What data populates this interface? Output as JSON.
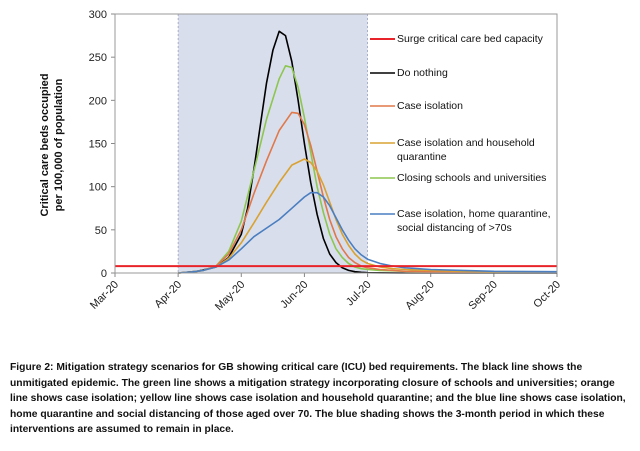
{
  "chart_data": {
    "type": "line",
    "title": "",
    "ylabel_line1": "Critical care beds occupied",
    "ylabel_line2": "per 100,000 of population",
    "xlabel": "",
    "x_ticks": [
      "Mar-20",
      "Apr-20",
      "May-20",
      "Jun-20",
      "Jul-20",
      "Aug-20",
      "Sep-20",
      "Oct-20"
    ],
    "ylim": [
      0,
      300
    ],
    "y_ticks": [
      0,
      50,
      100,
      150,
      200,
      250,
      300
    ],
    "shaded_period": {
      "start": "Apr-20",
      "end": "Jul-20",
      "color": "#d9deec"
    },
    "legend_position": "right, inside plot",
    "capacity": {
      "name": "Surge critical care bed capacity",
      "value": 8,
      "color": "#e8242a"
    },
    "series": [
      {
        "name": "Do nothing",
        "color": "#000000",
        "x": [
          1.0,
          1.3,
          1.6,
          1.8,
          2.0,
          2.1,
          2.2,
          2.3,
          2.4,
          2.5,
          2.6,
          2.7,
          2.8,
          2.9,
          3.0,
          3.1,
          3.2,
          3.3,
          3.4,
          3.5,
          3.6,
          3.7,
          3.8,
          3.9,
          4.0,
          4.2,
          4.5,
          5.0,
          6.0,
          7.0
        ],
        "y": [
          0,
          2,
          7,
          18,
          45,
          75,
          120,
          170,
          220,
          258,
          280,
          275,
          245,
          200,
          150,
          105,
          68,
          40,
          22,
          12,
          6,
          3,
          1.5,
          0.8,
          0.4,
          0.2,
          0.1,
          0,
          0,
          0
        ]
      },
      {
        "name": "Closing schools and universities",
        "color": "#8dc64f",
        "x": [
          1.0,
          1.2,
          1.4,
          1.6,
          1.8,
          2.0,
          2.2,
          2.4,
          2.6,
          2.7,
          2.8,
          2.9,
          3.0,
          3.1,
          3.2,
          3.3,
          3.4,
          3.5,
          3.6,
          3.7,
          3.8,
          3.9,
          4.0,
          4.2,
          4.4,
          4.6,
          5.0,
          5.5,
          6.0,
          7.0
        ],
        "y": [
          0,
          1,
          3,
          8,
          25,
          60,
          118,
          178,
          225,
          240,
          238,
          215,
          180,
          140,
          100,
          70,
          45,
          28,
          18,
          11,
          7,
          5,
          4,
          3,
          2.5,
          2,
          1.5,
          1,
          0.8,
          0.5
        ]
      },
      {
        "name": "Case isolation",
        "color": "#e0784a",
        "x": [
          1.0,
          1.2,
          1.4,
          1.6,
          1.8,
          2.0,
          2.2,
          2.4,
          2.6,
          2.8,
          2.9,
          3.0,
          3.1,
          3.2,
          3.3,
          3.4,
          3.5,
          3.6,
          3.7,
          3.8,
          3.9,
          4.0,
          4.2,
          4.4,
          4.6,
          5.0,
          5.5,
          6.0,
          7.0
        ],
        "y": [
          0,
          1,
          3,
          8,
          22,
          50,
          92,
          130,
          165,
          186,
          185,
          172,
          148,
          118,
          88,
          62,
          42,
          28,
          18,
          12,
          8,
          6,
          4,
          3,
          2,
          1.5,
          1,
          0.8,
          0.5
        ]
      },
      {
        "name": "Case isolation and household quarantine",
        "color": "#d9a230",
        "x": [
          1.0,
          1.2,
          1.4,
          1.6,
          1.8,
          2.0,
          2.2,
          2.4,
          2.6,
          2.8,
          3.0,
          3.1,
          3.2,
          3.3,
          3.4,
          3.5,
          3.6,
          3.7,
          3.8,
          3.9,
          4.0,
          4.2,
          4.4,
          4.6,
          5.0,
          5.5,
          6.0,
          7.0
        ],
        "y": [
          0,
          1,
          3,
          7,
          17,
          35,
          58,
          82,
          105,
          125,
          132,
          128,
          118,
          102,
          82,
          62,
          45,
          32,
          22,
          15,
          11,
          7,
          5,
          4,
          3,
          2,
          1.5,
          1
        ]
      },
      {
        "name": "Case isolation, home quarantine, social distancing of >70s",
        "name_line1": "Case isolation, home quarantine,",
        "name_line2": "social distancing of >70s",
        "color": "#4a7ec0",
        "x": [
          1.0,
          1.2,
          1.4,
          1.6,
          1.8,
          2.0,
          2.2,
          2.4,
          2.6,
          2.8,
          3.0,
          3.1,
          3.2,
          3.3,
          3.4,
          3.5,
          3.6,
          3.7,
          3.8,
          3.9,
          4.0,
          4.2,
          4.4,
          4.6,
          5.0,
          5.5,
          6.0,
          7.0
        ],
        "y": [
          0,
          1,
          3,
          7,
          15,
          28,
          42,
          52,
          62,
          75,
          88,
          93,
          93,
          88,
          78,
          64,
          50,
          38,
          28,
          21,
          16,
          11,
          8,
          6,
          4,
          3,
          2,
          1.5
        ]
      }
    ]
  },
  "legend": {
    "capacity": "Surge critical care bed capacity",
    "do_nothing": "Do nothing",
    "case_isolation": "Case isolation",
    "case_household_line1": "Case isolation and household",
    "case_household_line2": "quarantine",
    "closing_schools": "Closing schools and universities",
    "combined_line1": "Case isolation, home quarantine,",
    "combined_line2": "social distancing of >70s"
  },
  "caption": "Figure 2: Mitigation strategy scenarios for GB showing critical care (ICU) bed requirements. The black line shows the unmitigated epidemic. The green line shows a mitigation strategy incorporating closure of schools and universities; orange line shows case isolation; yellow line shows case isolation and household quarantine; and the blue line shows case isolation, home quarantine and social distancing of those aged over 70. The blue shading shows the 3-month period in which these interventions are assumed to remain in place."
}
